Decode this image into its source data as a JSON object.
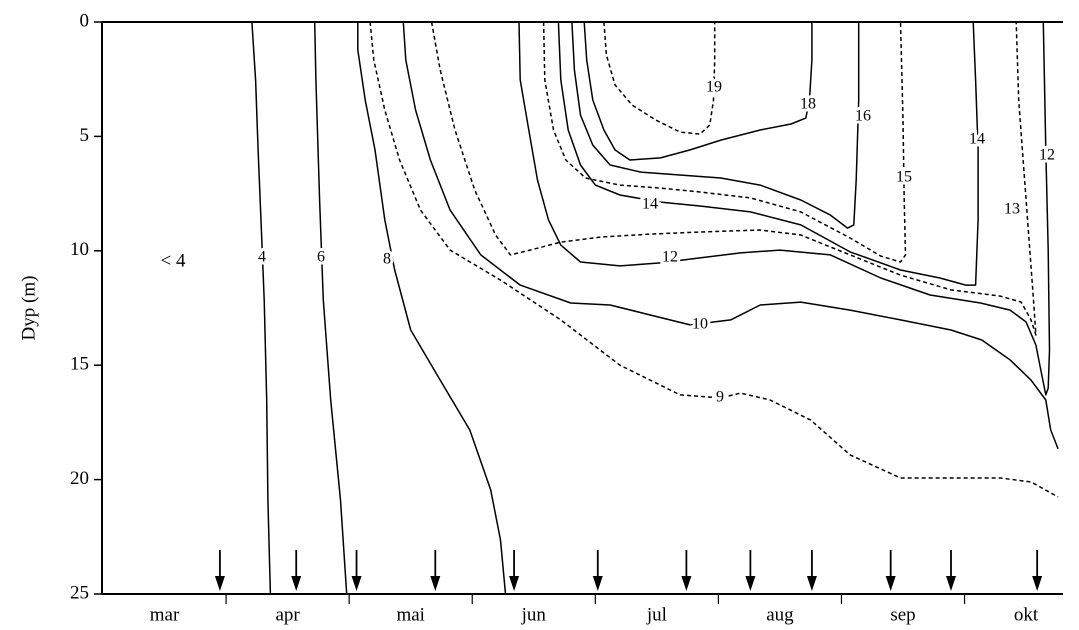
{
  "chart_data": {
    "type": "contour",
    "y_label": "Dyp (m)",
    "annotation": "< 4",
    "categories": [
      "mar",
      "apr",
      "mai",
      "jun",
      "jul",
      "aug",
      "sep",
      "okt"
    ],
    "xlim": [
      0,
      7.8
    ],
    "ylim": [
      0,
      25
    ],
    "yticks": [
      0,
      5,
      10,
      15,
      20,
      25
    ],
    "y_inverted": true,
    "color": "#000000",
    "sampling_dates": [
      0.95,
      1.57,
      2.06,
      2.7,
      3.34,
      4.02,
      4.74,
      5.26,
      5.76,
      6.4,
      6.89,
      7.59
    ],
    "contours": [
      {
        "level": 4,
        "dashed": false,
        "x": [
          1.21,
          1.24,
          1.26,
          1.29,
          1.31,
          1.33,
          1.34,
          1.36
        ],
        "y": [
          0,
          2.53,
          5.59,
          9.53,
          12.15,
          16.52,
          20.89,
          25
        ]
      },
      {
        "level": 6,
        "dashed": false,
        "x": [
          1.72,
          1.73,
          1.76,
          1.79,
          1.85,
          1.93,
          1.98
        ],
        "y": [
          0,
          2.53,
          7.78,
          12.15,
          16.52,
          20.89,
          25
        ]
      },
      {
        "level": 8,
        "dashed": false,
        "x": [
          2.07,
          2.07,
          2.13,
          2.21,
          2.29,
          2.37,
          2.5,
          2.74,
          2.98,
          3.15,
          3.23,
          3.27
        ],
        "y": [
          0,
          1.22,
          3.41,
          5.59,
          8.65,
          10.84,
          13.46,
          15.65,
          17.83,
          20.45,
          22.64,
          25
        ]
      },
      {
        "level": 9,
        "dashed": true,
        "x": [
          2.17,
          2.2,
          2.29,
          2.41,
          2.58,
          2.82,
          3.23,
          3.72,
          4.2,
          4.69,
          5.02,
          5.18,
          5.42,
          5.75,
          6.07,
          6.48,
          6.89,
          7.29,
          7.54,
          7.76
        ],
        "y": [
          0,
          1.66,
          3.85,
          6.03,
          8.22,
          9.97,
          11.28,
          13.02,
          15.0,
          16.3,
          16.43,
          16.22,
          16.52,
          17.4,
          18.92,
          19.93,
          19.93,
          19.93,
          20.1,
          20.76
        ]
      },
      {
        "level": 10,
        "dashed": false,
        "x": [
          2.44,
          2.46,
          2.54,
          2.66,
          2.82,
          3.07,
          3.39,
          3.8,
          4.12,
          4.45,
          4.77,
          5.1,
          5.34,
          5.67,
          6.07,
          6.48,
          6.89,
          7.14,
          7.37,
          7.54,
          7.66,
          7.7,
          7.76
        ],
        "y": [
          0,
          1.66,
          3.85,
          6.03,
          8.22,
          10.18,
          11.5,
          12.28,
          12.37,
          12.81,
          13.24,
          13.02,
          12.37,
          12.24,
          12.59,
          13.02,
          13.46,
          13.9,
          14.77,
          15.65,
          16.52,
          17.83,
          18.66
        ]
      },
      {
        "level": 12,
        "dashed": false,
        "x": [
          3.38,
          3.39,
          3.46,
          3.53,
          3.62,
          3.72,
          3.88,
          4.2,
          4.53,
          4.85,
          5.18,
          5.5,
          5.91,
          6.32,
          6.72,
          7.13,
          7.37,
          7.5,
          7.58,
          7.62,
          7.66,
          7.68,
          7.69,
          7.68,
          7.66,
          7.64
        ],
        "y": [
          0,
          2.53,
          4.72,
          6.91,
          8.65,
          9.75,
          10.49,
          10.66,
          10.53,
          10.31,
          10.09,
          9.97,
          10.18,
          11.19,
          11.93,
          12.28,
          12.59,
          13.11,
          14.12,
          15.21,
          16.3,
          16.0,
          14.34,
          9.97,
          5.59,
          0
        ]
      },
      {
        "level": 13,
        "dashed": true,
        "x": [
          2.67,
          2.74,
          2.86,
          3.02,
          3.19,
          3.31,
          3.47,
          3.72,
          4.04,
          4.45,
          4.85,
          5.34,
          5.67,
          6.07,
          6.48,
          6.89,
          7.29,
          7.46,
          7.54,
          7.58,
          7.56,
          7.5,
          7.44,
          7.42
        ],
        "y": [
          0,
          2.1,
          4.72,
          7.34,
          9.31,
          10.18,
          9.97,
          9.62,
          9.4,
          9.27,
          9.18,
          9.09,
          9.31,
          10.18,
          11.06,
          11.71,
          11.98,
          12.24,
          13.02,
          13.68,
          12.15,
          7.78,
          3.41,
          0
        ]
      },
      {
        "level": 14,
        "dashed": false,
        "x": [
          3.7,
          3.72,
          3.78,
          3.88,
          4.0,
          4.2,
          4.53,
          4.85,
          5.26,
          5.67,
          6.07,
          6.48,
          6.8,
          7.01,
          7.09,
          7.11,
          7.11,
          7.09,
          7.07
        ],
        "y": [
          0,
          2.53,
          4.72,
          6.25,
          7.13,
          7.56,
          7.87,
          8.04,
          8.3,
          8.87,
          10.05,
          10.84,
          11.19,
          11.5,
          11.5,
          8.65,
          5.59,
          2.53,
          0
        ]
      },
      {
        "level": 15,
        "dashed": true,
        "x": [
          3.58,
          3.59,
          3.66,
          3.76,
          3.92,
          4.2,
          4.53,
          4.85,
          5.26,
          5.67,
          6.07,
          6.32,
          6.48,
          6.52,
          6.51,
          6.5,
          6.48
        ],
        "y": [
          0,
          2.53,
          4.72,
          6.03,
          6.82,
          7.13,
          7.26,
          7.43,
          7.69,
          8.3,
          9.44,
          10.23,
          10.49,
          10.18,
          7.78,
          4.28,
          0
        ]
      },
      {
        "level": 16,
        "dashed": false,
        "x": [
          3.81,
          3.83,
          3.88,
          3.98,
          4.12,
          4.37,
          4.7,
          5.02,
          5.34,
          5.67,
          5.91,
          6.05,
          6.1,
          6.12,
          6.14,
          6.14
        ],
        "y": [
          0,
          2.1,
          4.07,
          5.38,
          6.25,
          6.56,
          6.69,
          6.82,
          7.13,
          7.78,
          8.44,
          9.01,
          8.87,
          6.91,
          3.41,
          0
        ]
      },
      {
        "level": 18,
        "dashed": false,
        "x": [
          3.91,
          3.93,
          3.98,
          4.07,
          4.16,
          4.28,
          4.53,
          4.77,
          5.02,
          5.34,
          5.59,
          5.71,
          5.74,
          5.76,
          5.76
        ],
        "y": [
          0,
          1.66,
          3.41,
          4.72,
          5.59,
          6.03,
          5.94,
          5.59,
          5.16,
          4.72,
          4.46,
          4.2,
          3.41,
          1.66,
          0
        ]
      },
      {
        "level": 19,
        "dashed": true,
        "x": [
          4.07,
          4.09,
          4.16,
          4.3,
          4.49,
          4.69,
          4.85,
          4.93,
          4.96,
          4.97,
          4.97
        ],
        "y": [
          0,
          1.44,
          2.75,
          3.63,
          4.28,
          4.81,
          4.9,
          4.5,
          3.41,
          1.66,
          0
        ]
      }
    ]
  }
}
